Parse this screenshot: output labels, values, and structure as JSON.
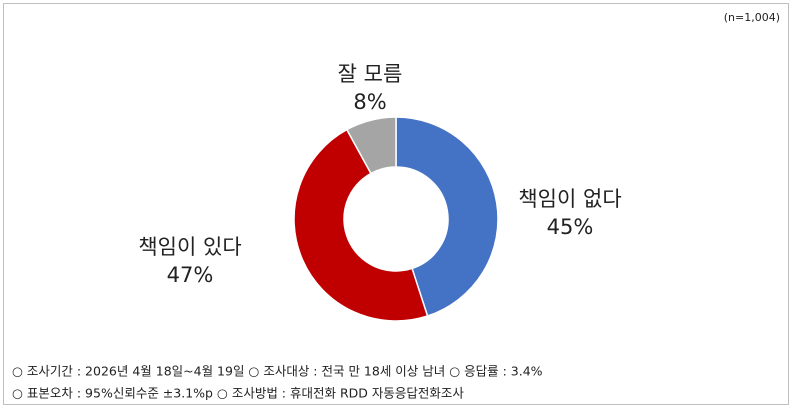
{
  "chart_data": {
    "type": "donut",
    "annotation": "(n=1,004)",
    "categories": [
      "책임이 없다",
      "책임이 있다",
      "잘 모름"
    ],
    "values": [
      45,
      47,
      8
    ],
    "value_labels": [
      "45%",
      "47%",
      "8%"
    ],
    "colors": [
      "#4472c4",
      "#c00000",
      "#a5a5a5"
    ],
    "notes": [
      "○ 조사기간 : 2026년 4월 18일~4월 19일 ○ 조사대상 : 전국 만 18세 이상 남녀 ○ 응답률 : 3.4%",
      "○ 표본오차 : 95%신뢰수준 ±3.1%p ○ 조사방법 : 휴대전화 RDD 자동응답전화조사"
    ]
  }
}
